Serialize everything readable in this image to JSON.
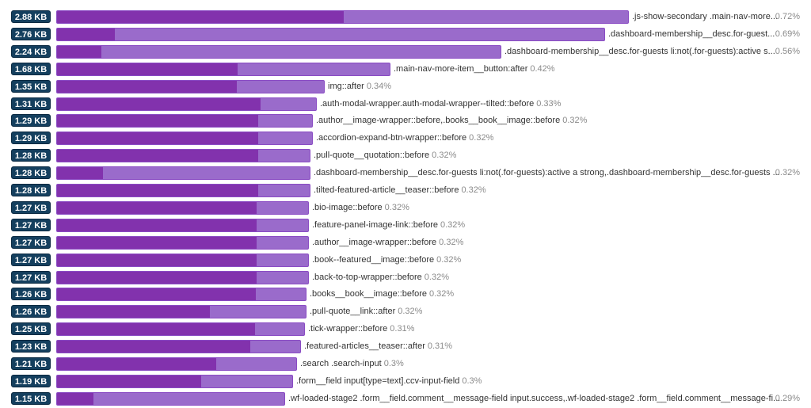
{
  "chart_data": {
    "type": "bar",
    "orientation": "horizontal",
    "title": "",
    "xlabel": "",
    "ylabel": "",
    "unit": "KB",
    "xlim": [
      0,
      2.88
    ],
    "grid": false,
    "legend": "none",
    "colors": {
      "primary": "#8232ad",
      "secondary": "#9a6bcb",
      "badge": "#143f5e"
    },
    "rows": [
      {
        "size": 2.88,
        "size_label": "2.88 KB",
        "selector": ".js-show-secondary .main-nav-more...",
        "percent": "0.72%",
        "primary_fraction": 0.5,
        "pct_aligned_right": true
      },
      {
        "size": 2.76,
        "size_label": "2.76 KB",
        "selector": ".dashboard-membership__desc.for-guest...",
        "percent": "0.69%",
        "primary_fraction": 0.105,
        "pct_aligned_right": true
      },
      {
        "size": 2.24,
        "size_label": "2.24 KB",
        "selector": ".dashboard-membership__desc.for-guests li:not(.for-guests):active s...",
        "percent": "0.56%",
        "primary_fraction": 0.1,
        "pct_aligned_right": true
      },
      {
        "size": 1.68,
        "size_label": "1.68 KB",
        "selector": ".main-nav-more-item__button:after",
        "percent": "0.42%",
        "primary_fraction": 0.54
      },
      {
        "size": 1.35,
        "size_label": "1.35 KB",
        "selector": "img::after",
        "percent": "0.34%",
        "primary_fraction": 0.67
      },
      {
        "size": 1.31,
        "size_label": "1.31 KB",
        "selector": ".auth-modal-wrapper.auth-modal-wrapper--tilted::before",
        "percent": "0.33%",
        "primary_fraction": 0.78
      },
      {
        "size": 1.29,
        "size_label": "1.29 KB",
        "selector": ".author__image-wrapper::before,.books__book__image::before",
        "percent": "0.32%",
        "primary_fraction": 0.785
      },
      {
        "size": 1.29,
        "size_label": "1.29 KB",
        "selector": ".accordion-expand-btn-wrapper::before",
        "percent": "0.32%",
        "primary_fraction": 0.785
      },
      {
        "size": 1.28,
        "size_label": "1.28 KB",
        "selector": ".pull-quote__quotation::before",
        "percent": "0.32%",
        "primary_fraction": 0.79
      },
      {
        "size": 1.28,
        "size_label": "1.28 KB",
        "selector": ".dashboard-membership__desc.for-guests li:not(.for-guests):active a strong,.dashboard-membership__desc.for-guests ...",
        "percent": "0.32%",
        "primary_fraction": 0.18,
        "pct_aligned_right": true
      },
      {
        "size": 1.28,
        "size_label": "1.28 KB",
        "selector": ".tilted-featured-article__teaser::before",
        "percent": "0.32%",
        "primary_fraction": 0.79
      },
      {
        "size": 1.27,
        "size_label": "1.27 KB",
        "selector": ".bio-image::before",
        "percent": "0.32%",
        "primary_fraction": 0.79
      },
      {
        "size": 1.27,
        "size_label": "1.27 KB",
        "selector": ".feature-panel-image-link::before",
        "percent": "0.32%",
        "primary_fraction": 0.79
      },
      {
        "size": 1.27,
        "size_label": "1.27 KB",
        "selector": ".author__image-wrapper::before",
        "percent": "0.32%",
        "primary_fraction": 0.79
      },
      {
        "size": 1.27,
        "size_label": "1.27 KB",
        "selector": ".book--featured__image::before",
        "percent": "0.32%",
        "primary_fraction": 0.79
      },
      {
        "size": 1.27,
        "size_label": "1.27 KB",
        "selector": ".back-to-top-wrapper::before",
        "percent": "0.32%",
        "primary_fraction": 0.79
      },
      {
        "size": 1.26,
        "size_label": "1.26 KB",
        "selector": ".books__book__image::before",
        "percent": "0.32%",
        "primary_fraction": 0.795
      },
      {
        "size": 1.26,
        "size_label": "1.26 KB",
        "selector": ".pull-quote__link::after",
        "percent": "0.32%",
        "primary_fraction": 0.61
      },
      {
        "size": 1.25,
        "size_label": "1.25 KB",
        "selector": ".tick-wrapper::before",
        "percent": "0.31%",
        "primary_fraction": 0.795
      },
      {
        "size": 1.23,
        "size_label": "1.23 KB",
        "selector": ".featured-articles__teaser::after",
        "percent": "0.31%",
        "primary_fraction": 0.79
      },
      {
        "size": 1.21,
        "size_label": "1.21 KB",
        "selector": ".search .search-input",
        "percent": "0.3%",
        "primary_fraction": 0.66
      },
      {
        "size": 1.19,
        "size_label": "1.19 KB",
        "selector": ".form__field input[type=text].ccv-input-field",
        "percent": "0.3%",
        "primary_fraction": 0.61
      },
      {
        "size": 1.15,
        "size_label": "1.15 KB",
        "selector": ".wf-loaded-stage2 .form__field.comment__message-field input.success,.wf-loaded-stage2 .form__field.comment__message-fi...",
        "percent": "0.29%",
        "primary_fraction": 0.16,
        "pct_aligned_right": true
      }
    ]
  }
}
